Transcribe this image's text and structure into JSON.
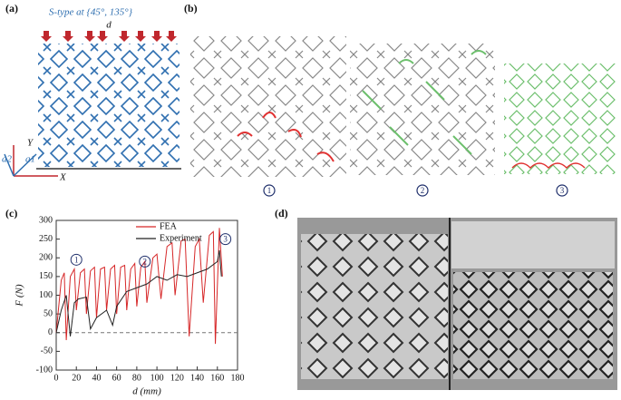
{
  "panel_a": {
    "label": "(a)",
    "title": "S-type at {45°, 135°}",
    "load_label": "d",
    "axis_y": "Y",
    "axis_x": "X",
    "axis_a2": "a2",
    "axis_a1": "a1"
  },
  "panel_b": {
    "label": "(b)",
    "stages": [
      "1",
      "2",
      "3"
    ]
  },
  "panel_d": {
    "label": "(d)"
  },
  "chart_data": {
    "type": "line",
    "panel_label": "(c)",
    "xlabel": "d (mm)",
    "ylabel": "F (N)",
    "xlim": [
      0,
      180
    ],
    "ylim": [
      -100,
      300
    ],
    "xticks": [
      0,
      20,
      40,
      60,
      80,
      100,
      120,
      140,
      160,
      180
    ],
    "yticks": [
      -100,
      -50,
      0,
      50,
      100,
      150,
      200,
      250,
      300
    ],
    "series": [
      {
        "name": "FEA",
        "color": "#d62728",
        "x": [
          0,
          5,
          8,
          10,
          14,
          18,
          20,
          24,
          28,
          30,
          34,
          38,
          40,
          44,
          48,
          50,
          54,
          58,
          60,
          64,
          68,
          70,
          74,
          78,
          80,
          84,
          88,
          90,
          96,
          100,
          104,
          110,
          115,
          118,
          124,
          128,
          132,
          138,
          142,
          146,
          152,
          156,
          158,
          162,
          165
        ],
        "values": [
          0,
          140,
          160,
          -20,
          150,
          170,
          60,
          160,
          170,
          50,
          165,
          175,
          40,
          170,
          175,
          60,
          170,
          180,
          50,
          175,
          180,
          60,
          170,
          185,
          70,
          175,
          190,
          80,
          200,
          210,
          90,
          230,
          240,
          100,
          245,
          250,
          -10,
          230,
          250,
          80,
          260,
          270,
          -30,
          280,
          150
        ]
      },
      {
        "name": "Experiment",
        "color": "#222222",
        "x": [
          0,
          5,
          10,
          14,
          18,
          22,
          30,
          34,
          40,
          50,
          56,
          60,
          70,
          80,
          90,
          100,
          110,
          120,
          130,
          140,
          150,
          160,
          162,
          164
        ],
        "values": [
          0,
          60,
          100,
          -10,
          80,
          90,
          95,
          10,
          40,
          60,
          20,
          70,
          110,
          120,
          130,
          150,
          140,
          155,
          150,
          160,
          170,
          190,
          220,
          150
        ]
      }
    ],
    "annotations": [
      {
        "label": "1",
        "x": 20,
        "y": 195
      },
      {
        "label": "2",
        "x": 88,
        "y": 190
      },
      {
        "label": "3",
        "x": 168,
        "y": 250
      }
    ]
  }
}
